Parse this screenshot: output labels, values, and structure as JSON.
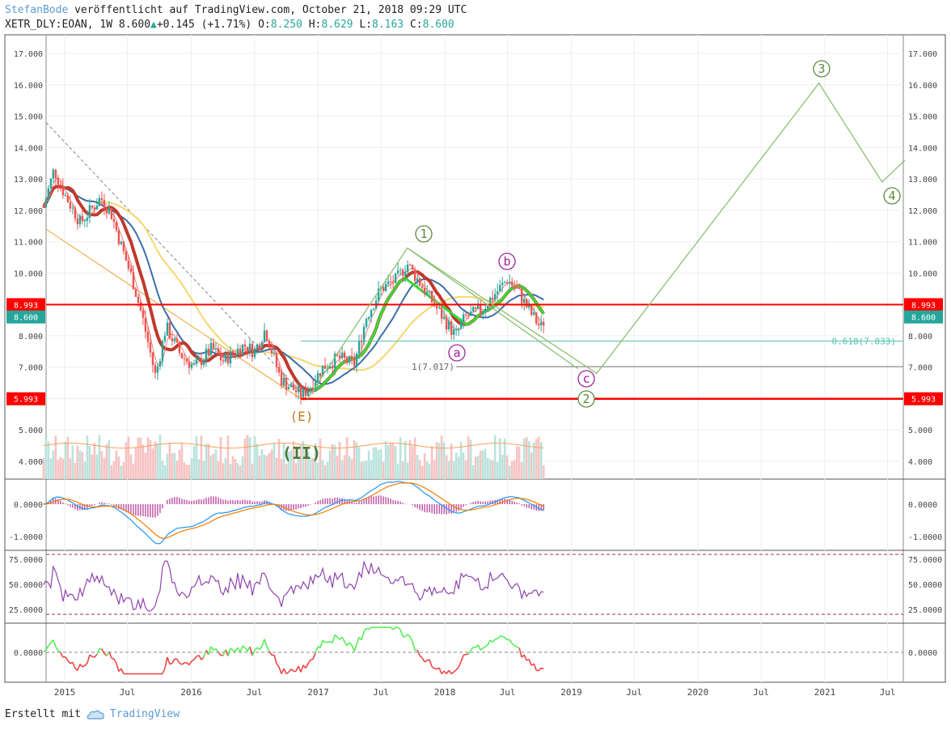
{
  "header": {
    "author": "StefanBode",
    "published_text": " veröffentlicht auf TradingView.com, October 21, 2018 09:29 UTC",
    "symbol": "XETR_DLY:EOAN, 1W",
    "last": "8.600",
    "change": "+0.145 (+1.71%)",
    "open_label": "O:",
    "open": "8.250",
    "high_label": "H:",
    "high": "8.629",
    "low_label": "L:",
    "low": "8.163",
    "close_label": "C:",
    "close": "8.600"
  },
  "footer": {
    "created_with": "Erstellt mit",
    "brand": "TradingView"
  },
  "colors": {
    "up": "#26a69a",
    "down": "#ef5350",
    "hline": "#ff0000",
    "wave_green": "#5a8a3a",
    "wave_purple": "#a020a0",
    "wave_orange": "#c07820",
    "ma_yellow": "#f5d76e",
    "ma_blue": "#3d6ea8",
    "ma_red": "#c0392b",
    "ma_green": "#33dd33"
  },
  "chart_data": {
    "type": "candlestick",
    "price_axis": {
      "ticks": [
        "17.000",
        "16.000",
        "15.000",
        "14.000",
        "13.000",
        "12.000",
        "11.000",
        "10.000",
        "9.000",
        "8.000",
        "7.000",
        "6.000",
        "5.000",
        "4.000"
      ],
      "range": [
        3.4,
        17.6
      ]
    },
    "time_axis": {
      "labels": [
        "2015",
        "Jul",
        "2016",
        "Jul",
        "2017",
        "Jul",
        "2018",
        "Jul",
        "2019",
        "Jul",
        "2020",
        "Jul",
        "2021",
        "Jul"
      ]
    },
    "price_markers": [
      {
        "label": "8.993",
        "value": 8.993,
        "style": "red"
      },
      {
        "label": "8.600",
        "value": 8.6,
        "style": "green"
      },
      {
        "label": "5.993",
        "value": 5.993,
        "style": "red"
      }
    ],
    "fib_labels": [
      {
        "text": "0.618(7.833)",
        "value": 7.833
      },
      {
        "text": "1(7.017)",
        "value": 7.017
      }
    ],
    "wave_labels": [
      {
        "text": "1",
        "style": "circle-green"
      },
      {
        "text": "2",
        "style": "circle-green"
      },
      {
        "text": "3",
        "style": "circle-green"
      },
      {
        "text": "4",
        "style": "circle-green"
      },
      {
        "text": "a",
        "style": "circle-purple"
      },
      {
        "text": "b",
        "style": "circle-purple"
      },
      {
        "text": "c",
        "style": "circle-purple"
      },
      {
        "text": "(E)",
        "style": "orange"
      },
      {
        "text": "(II)",
        "style": "green-bold"
      }
    ],
    "macd_axis": {
      "ticks": [
        "0.0000",
        "-1.0000"
      ]
    },
    "rsi_axis": {
      "ticks": [
        "75.0000",
        "50.0000",
        "25.0000"
      ]
    },
    "osc_axis": {
      "ticks": [
        "0.0000"
      ]
    },
    "wave_path": [
      {
        "date": "2016-12-01",
        "price": 5.99
      },
      {
        "date": "2017-09-15",
        "price": 10.8
      },
      {
        "date": "2019-03-15",
        "price": 6.8
      },
      {
        "date": "2020-12-15",
        "price": 16.05
      },
      {
        "date": "2021-06-15",
        "price": 12.9
      },
      {
        "date": "2021-08-20",
        "price": 13.6
      }
    ],
    "weekly_close_anchors": [
      {
        "date": "2014-11-01",
        "price": 12.1
      },
      {
        "date": "2014-12-01",
        "price": 13.3
      },
      {
        "date": "2015-01-01",
        "price": 12.5
      },
      {
        "date": "2015-02-15",
        "price": 11.6
      },
      {
        "date": "2015-04-15",
        "price": 12.4
      },
      {
        "date": "2015-05-15",
        "price": 11.9
      },
      {
        "date": "2015-06-15",
        "price": 10.8
      },
      {
        "date": "2015-07-15",
        "price": 9.8
      },
      {
        "date": "2015-08-15",
        "price": 8.5
      },
      {
        "date": "2015-09-20",
        "price": 6.7
      },
      {
        "date": "2015-10-20",
        "price": 8.3
      },
      {
        "date": "2015-12-01",
        "price": 7.4
      },
      {
        "date": "2016-01-10",
        "price": 7.0
      },
      {
        "date": "2016-03-01",
        "price": 7.6
      },
      {
        "date": "2016-04-01",
        "price": 7.2
      },
      {
        "date": "2016-06-01",
        "price": 7.7
      },
      {
        "date": "2016-07-01",
        "price": 7.5
      },
      {
        "date": "2016-08-01",
        "price": 8.2
      },
      {
        "date": "2016-09-15",
        "price": 6.6
      },
      {
        "date": "2016-11-15",
        "price": 6.1
      },
      {
        "date": "2016-12-10",
        "price": 6.4
      },
      {
        "date": "2017-01-15",
        "price": 7.0
      },
      {
        "date": "2017-03-01",
        "price": 7.3
      },
      {
        "date": "2017-04-15",
        "price": 7.1
      },
      {
        "date": "2017-05-20",
        "price": 8.6
      },
      {
        "date": "2017-07-01",
        "price": 9.5
      },
      {
        "date": "2017-08-15",
        "price": 9.8
      },
      {
        "date": "2017-09-15",
        "price": 10.3
      },
      {
        "date": "2017-10-20",
        "price": 9.7
      },
      {
        "date": "2017-12-01",
        "price": 9.0
      },
      {
        "date": "2018-02-01",
        "price": 8.0
      },
      {
        "date": "2018-03-01",
        "price": 8.6
      },
      {
        "date": "2018-04-15",
        "price": 8.8
      },
      {
        "date": "2018-05-15",
        "price": 9.2
      },
      {
        "date": "2018-07-01",
        "price": 9.8
      },
      {
        "date": "2018-08-01",
        "price": 9.4
      },
      {
        "date": "2018-09-01",
        "price": 8.8
      },
      {
        "date": "2018-10-05",
        "price": 8.25
      },
      {
        "date": "2018-10-19",
        "price": 8.6
      }
    ]
  }
}
